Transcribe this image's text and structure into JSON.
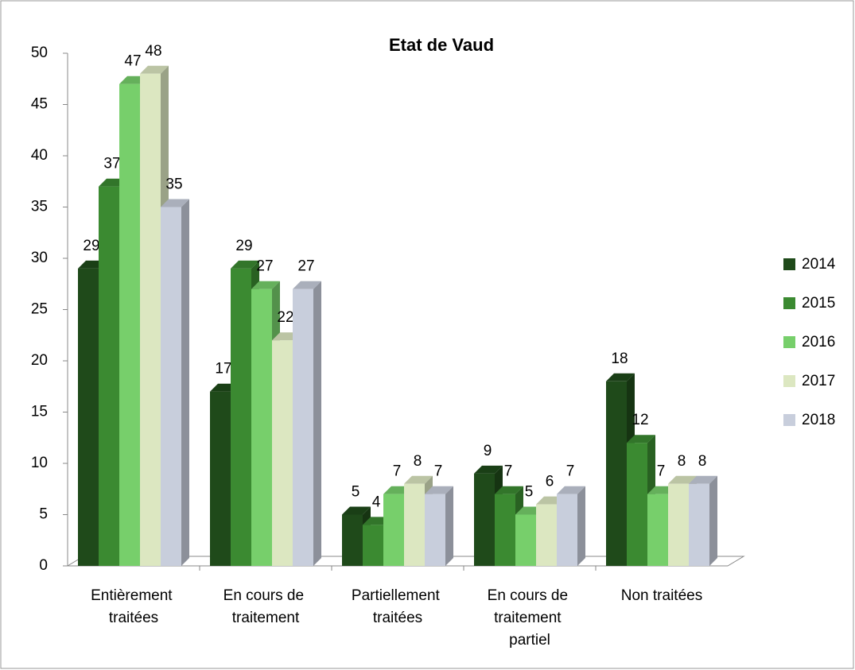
{
  "chart_data": {
    "type": "bar3d",
    "title": "Etat de Vaud",
    "categories": [
      "Entièrement traitées",
      "En cours de traitement",
      "Partiellement traitées",
      "En cours de traitement partiel",
      "Non traitées"
    ],
    "series": [
      {
        "name": "2014",
        "color": "#1f4a1a",
        "values": [
          29,
          17,
          5,
          9,
          18
        ]
      },
      {
        "name": "2015",
        "color": "#3b8a31",
        "values": [
          37,
          29,
          4,
          7,
          12
        ]
      },
      {
        "name": "2016",
        "color": "#77cf6b",
        "values": [
          47,
          27,
          7,
          5,
          7
        ]
      },
      {
        "name": "2017",
        "color": "#dce7c1",
        "values": [
          48,
          22,
          8,
          6,
          8
        ]
      },
      {
        "name": "2018",
        "color": "#c8cedc",
        "values": [
          35,
          27,
          7,
          7,
          8
        ]
      }
    ],
    "ylim": [
      0,
      50
    ],
    "yticks": [
      0,
      5,
      10,
      15,
      20,
      25,
      30,
      35,
      40,
      45,
      50
    ],
    "legend": "right"
  }
}
